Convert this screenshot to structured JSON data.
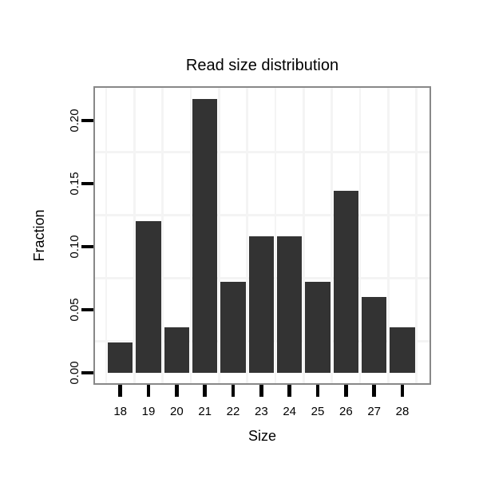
{
  "chart_data": {
    "type": "bar",
    "title": "Read size distribution",
    "xlabel": "Size",
    "ylabel": "Fraction",
    "categories": [
      "18",
      "19",
      "20",
      "21",
      "22",
      "23",
      "24",
      "25",
      "26",
      "27",
      "28"
    ],
    "values": [
      0.024,
      0.1205,
      0.036,
      0.217,
      0.072,
      0.1085,
      0.1085,
      0.072,
      0.1445,
      0.06,
      0.036
    ],
    "yticks": [
      {
        "value": 0.0,
        "label": "0.00"
      },
      {
        "value": 0.05,
        "label": "0.05"
      },
      {
        "value": 0.1,
        "label": "0.10"
      },
      {
        "value": 0.15,
        "label": "0.15"
      },
      {
        "value": 0.2,
        "label": "0.20"
      }
    ],
    "ylim": [
      0,
      0.2275
    ],
    "legend": "none",
    "grid": "faint minor gridlines between ticks, horizontal and vertical",
    "colors": {
      "bar": "#333333",
      "panel_border": "#888888",
      "grid": "#f4f4f4",
      "tick": "#000000",
      "text": "#000000",
      "background": "#ffffff"
    }
  }
}
